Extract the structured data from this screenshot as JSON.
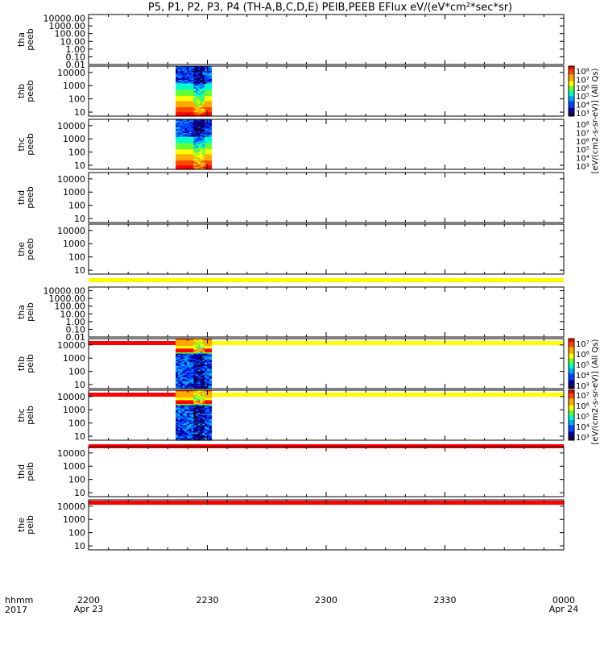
{
  "title": "P5, P1, P2, P3, P4 (TH-A,B,C,D,E) PEIB,PEEB EFlux eV/(eV*cm²*sec*sr)",
  "colorbar_label_top": "[eV/(cm2-s-sr-eV)] (All Qs)",
  "colorbar_label_bottom": "[eV/(cm2-s-sr-eV)] (All Qs)",
  "time_axis": {
    "prefix_lines": [
      "hhmm",
      "2017"
    ],
    "ticks": [
      {
        "label": "2200",
        "date": "Apr 23"
      },
      {
        "label": "2230",
        "date": ""
      },
      {
        "label": "2300",
        "date": ""
      },
      {
        "label": "2330",
        "date": ""
      },
      {
        "label": "0000",
        "date": "Apr 24"
      }
    ]
  },
  "colors": {
    "spectrogram_palette": [
      "#1a0033",
      "#0000aa",
      "#0044ff",
      "#00aaff",
      "#00ffcc",
      "#66ff33",
      "#ffff00",
      "#ffaa00",
      "#ff4400",
      "#ff0000"
    ],
    "yellow_bar": "#ffff00",
    "red_bar": "#ff0000"
  },
  "chart_data": {
    "type": "heatmap",
    "x_range_minutes": [
      0,
      120
    ],
    "panels": [
      {
        "name": "tha peeb",
        "ylabels": [
          "10000.00",
          "1000.00",
          "100.00",
          "10.00",
          "1.00",
          "0.10",
          "0.01"
        ],
        "yticks": [
          10000,
          1000,
          100,
          10,
          1,
          0.1,
          0.01
        ],
        "ylim": [
          0.01,
          30000
        ],
        "data_window": null,
        "bars": []
      },
      {
        "name": "thb peeb",
        "ylabels": [
          "10000",
          "1000",
          "100",
          "10"
        ],
        "yticks": [
          10000,
          1000,
          100,
          10
        ],
        "ylim": [
          5,
          30000
        ],
        "data_window": [
          22,
          31
        ],
        "profile": "electron",
        "bars": [],
        "colorbar": true
      },
      {
        "name": "thc peeb",
        "ylabels": [
          "10000",
          "1000",
          "100",
          "10"
        ],
        "yticks": [
          10000,
          1000,
          100,
          10
        ],
        "ylim": [
          5,
          30000
        ],
        "data_window": [
          22,
          31
        ],
        "profile": "electron",
        "bars": []
      },
      {
        "name": "thd peeb",
        "ylabels": [
          "10000",
          "1000",
          "100",
          "10"
        ],
        "yticks": [
          10000,
          1000,
          100,
          10
        ],
        "ylim": [
          5,
          30000
        ],
        "data_window": null,
        "bars": []
      },
      {
        "name": "the peeb",
        "ylabels": [
          "10000",
          "1000",
          "100",
          "10"
        ],
        "yticks": [
          10000,
          1000,
          100,
          10
        ],
        "ylim": [
          5,
          30000
        ],
        "data_window": null,
        "bars": [
          {
            "color": "yellow",
            "pos": "bottom"
          }
        ]
      },
      {
        "name": "tha peib",
        "ylabels": [
          "10000.00",
          "1000.00",
          "100.00",
          "10.00",
          "1.00",
          "0.10",
          "0.01"
        ],
        "yticks": [
          10000,
          1000,
          100,
          10,
          1,
          0.1,
          0.01
        ],
        "ylim": [
          0.01,
          30000
        ],
        "data_window": null,
        "bars": [
          {
            "color": "red_yellow",
            "pos": "bottom"
          }
        ]
      },
      {
        "name": "thb peib",
        "ylabels": [
          "10000",
          "1000",
          "100",
          "10"
        ],
        "yticks": [
          10000,
          1000,
          100,
          10
        ],
        "ylim": [
          5,
          30000
        ],
        "data_window": [
          22,
          31
        ],
        "profile": "ion",
        "bars": [
          {
            "color": "red_yellow",
            "pos": "bottom"
          }
        ],
        "colorbar": true
      },
      {
        "name": "thc peib",
        "ylabels": [
          "10000",
          "1000",
          "100",
          "10"
        ],
        "yticks": [
          10000,
          1000,
          100,
          10
        ],
        "ylim": [
          5,
          30000
        ],
        "data_window": [
          22,
          31
        ],
        "profile": "ion",
        "bars": [
          {
            "color": "red",
            "pos": "bottom"
          }
        ],
        "colorbar": true
      },
      {
        "name": "thd peib",
        "ylabels": [
          "10000",
          "1000",
          "100",
          "10"
        ],
        "yticks": [
          10000,
          1000,
          100,
          10
        ],
        "ylim": [
          5,
          30000
        ],
        "data_window": null,
        "bars": [
          {
            "color": "red",
            "pos": "bottom"
          }
        ]
      },
      {
        "name": "the peib",
        "ylabels": [
          "10000",
          "1000",
          "100",
          "10"
        ],
        "yticks": [
          10000,
          1000,
          100,
          10
        ],
        "ylim": [
          5,
          30000
        ],
        "data_window": null,
        "bars": []
      }
    ],
    "colorbars": [
      {
        "ticks": [
          "10⁸",
          "10⁷",
          "10⁶",
          "10⁵",
          "10⁴",
          "10³"
        ]
      },
      {
        "ticks": [
          "10⁸",
          "10⁷",
          "10⁶",
          "10⁵",
          "10⁴",
          "10³"
        ]
      },
      {
        "ticks": [
          "10⁷",
          "10⁶",
          "10⁵",
          "10⁴",
          "10³"
        ]
      },
      {
        "ticks": [
          "10⁷",
          "10⁶",
          "10⁵",
          "10⁴",
          "10³"
        ]
      }
    ]
  }
}
